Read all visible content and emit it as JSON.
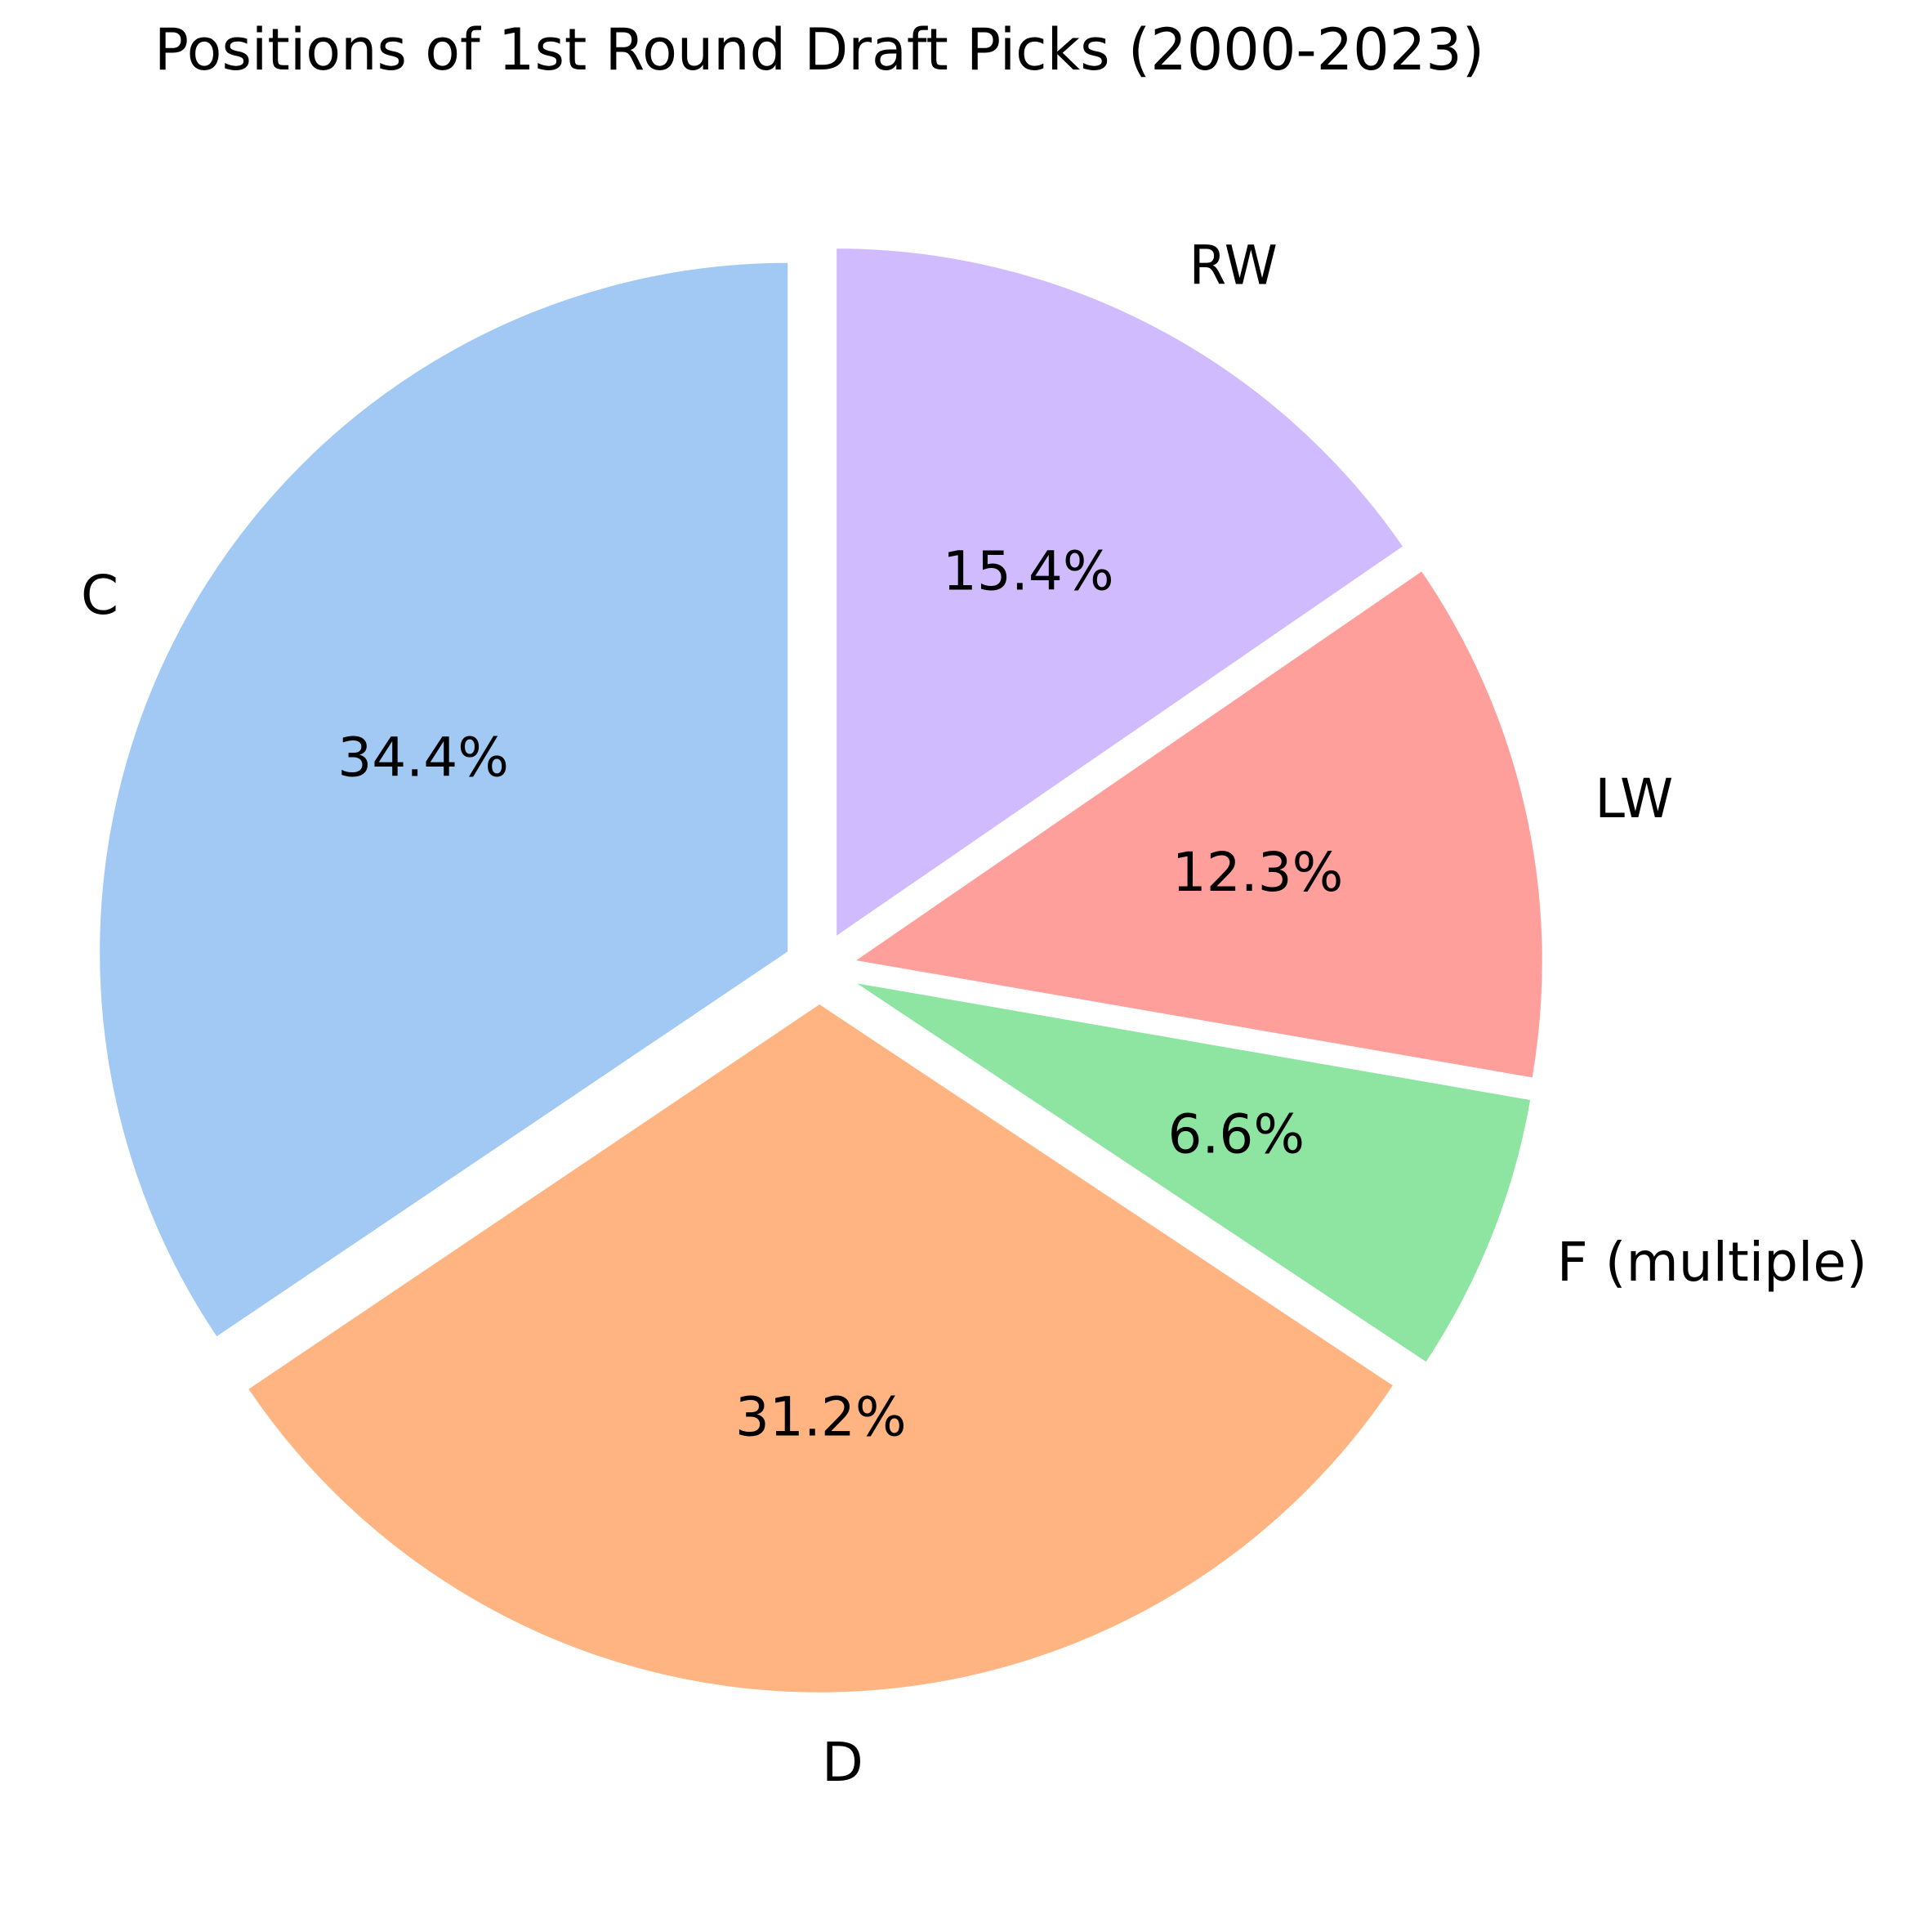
{
  "chart_data": {
    "type": "pie",
    "title": "Positions of 1st Round Draft Picks (2000-2023)",
    "categories": [
      "C",
      "D",
      "F (multiple)",
      "LW",
      "RW"
    ],
    "values": [
      34.4,
      31.2,
      6.6,
      12.3,
      15.4
    ],
    "value_labels": [
      "34.4%",
      "31.2%",
      "6.6%",
      "12.3%",
      "15.4%"
    ],
    "colors": [
      "#a1c9f4",
      "#ffb482",
      "#8de5a1",
      "#ff9f9b",
      "#d0bbff"
    ],
    "start_angle_deg": 90,
    "direction": "counterclockwise",
    "exploded": true,
    "legend": "none"
  }
}
